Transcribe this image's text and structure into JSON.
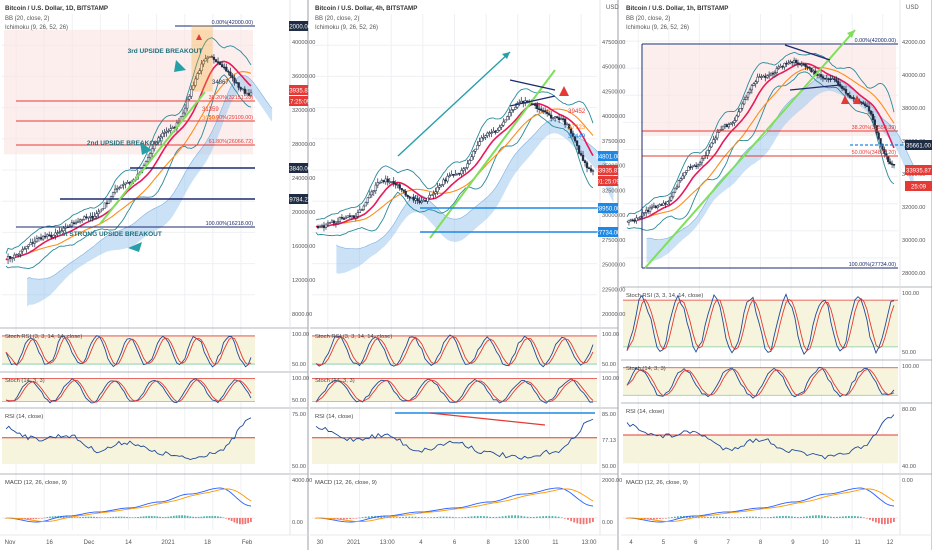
{
  "colors": {
    "bg": "#ffffff",
    "grid": "#eef0f3",
    "sep": "#9aa0a8",
    "price": "#1e2c44",
    "bb_mid": "#e8195a",
    "bb_band": "#2b8a9a",
    "ichi_line": "#ff8c1a",
    "cloud": "#9ec9ee",
    "red_level": "#e53935",
    "navy_level": "#1e2a6e",
    "blue_level": "#1e88e5",
    "green_trend": "#7ee05a",
    "teal_arrow": "#26a0a8",
    "stoch_k": "#1e4b9a",
    "stoch_d": "#e53935",
    "stoch_band": "#f7f4dd",
    "macd_line": "#2962ff",
    "macd_signal": "#ff9800",
    "hist_up": "#26a69a",
    "hist_down": "#ef5350",
    "top_zone": "#fbe3e3",
    "orange_box": "#f5a623",
    "tag_dark": "#1e2c44",
    "tag_red": "#e53935",
    "tag_blue": "#1e88e5",
    "tag_orange": "#ff8c1a"
  },
  "panels": [
    {
      "id": "1d",
      "title": "Bitcoin / U.S. Dollar, 1D, BITSTAMP",
      "indicators": [
        "BB (20, close, 2)",
        "Ichimoku (9, 26, 52, 26)"
      ],
      "axis_labels": [
        "40000.00",
        "36000.00",
        "32000.00",
        "28000.00",
        "24000.00",
        "20000.00",
        "16000.00",
        "12000.00",
        "8000.00"
      ],
      "price_tags": [
        "42000.00",
        "33935.87",
        "17:25:09",
        "23840.00",
        "19784.22"
      ],
      "levels": [
        {
          "label": "0.00%(42000.00)"
        },
        {
          "label": "38.20%(32151.28)"
        },
        {
          "label": "50.00%(29109.00)"
        },
        {
          "label": "61.80%(26066.72)"
        },
        {
          "label": "100.00%(16218.00)"
        }
      ],
      "annotations": [
        "3rd UPSIDE BREAKOUT",
        "2nd UPSIDE BREAKOUT",
        "1st STRONG UPSIDE BREAKOUT"
      ],
      "value_labels": [
        "34867",
        "31359",
        "30103"
      ],
      "sub": [
        {
          "name": "Stoch RSI (3, 3, 14, 14, close)",
          "ticks": [
            "100.00",
            "50.00"
          ]
        },
        {
          "name": "Stoch (14, 3, 3)",
          "ticks": [
            "100.00",
            "50.00"
          ]
        },
        {
          "name": "RSI (14, close)",
          "ticks": [
            "75.00",
            "50.00"
          ]
        },
        {
          "name": "MACD (12, 26, close, 9)",
          "ticks": [
            "4000.00",
            "0.00"
          ]
        }
      ],
      "x_labels": [
        "Nov",
        "16",
        "Dec",
        "14",
        "2021",
        "18",
        "Feb"
      ]
    },
    {
      "id": "4h",
      "title": "Bitcoin / U.S. Dollar, 4h, BITSTAMP",
      "indicators": [
        "BB (20, close, 2)",
        "Ichimoku (9, 26, 52, 26)"
      ],
      "currency": "USD",
      "axis_labels": [
        "47500.00",
        "45000.00",
        "42500.00",
        "40000.00",
        "37500.00",
        "35000.00",
        "32500.00",
        "30000.00",
        "27500.00",
        "25000.00",
        "22500.00",
        "20000.00"
      ],
      "price_tags": [
        "34801.00",
        "33935.87",
        "01:25:09",
        "28950.00",
        "27734.00"
      ],
      "value_labels": [
        "39452",
        "37723",
        "37449"
      ],
      "sub": [
        {
          "name": "Stoch RSI (3, 3, 14, 14, close)",
          "ticks": [
            "100.00",
            "50.00"
          ]
        },
        {
          "name": "Stoch (14, 3, 3)",
          "ticks": [
            "100.00"
          ]
        },
        {
          "name": "RSI (14, close)",
          "ticks": [
            "85.00",
            "77.13",
            "50.00"
          ]
        },
        {
          "name": "MACD (12, 26, close, 9)",
          "ticks": [
            "2000.00",
            "0.00"
          ]
        }
      ],
      "x_labels": [
        "30",
        "2021",
        "13:00",
        "4",
        "6",
        "8",
        "13:00",
        "11",
        "13:00"
      ]
    },
    {
      "id": "1h",
      "title": "Bitcoin / U.S. Dollar, 1h, BITSTAMP",
      "indicators": [
        "BB (20, close, 2)",
        "Ichimoku (9, 26, 52, 26)"
      ],
      "currency": "USD",
      "axis_labels": [
        "42000.00",
        "40000.00",
        "38000.00",
        "36000.00",
        "34000.00",
        "32000.00",
        "30000.00",
        "28000.00"
      ],
      "price_tags": [
        "35661.00",
        "33935.87",
        "25:09"
      ],
      "levels": [
        {
          "label": "0.00%(42000.00)"
        },
        {
          "label": "38.20%(36550.39)"
        },
        {
          "label": "50.00%(34867.20)"
        },
        {
          "label": "100.00%(27734.00)"
        }
      ],
      "sub": [
        {
          "name": "Stoch RSI (3, 3, 14, 14, close)",
          "ticks": [
            "100.00",
            "50.00"
          ]
        },
        {
          "name": "Stoch (14, 3, 3)",
          "ticks": [
            "100.00"
          ]
        },
        {
          "name": "RSI (14, close)",
          "ticks": [
            "80.00",
            "40.00"
          ]
        },
        {
          "name": "MACD (12, 26, close, 9)",
          "ticks": [
            "0.00"
          ]
        }
      ],
      "x_labels": [
        "4",
        "5",
        "6",
        "7",
        "8",
        "9",
        "10",
        "11",
        "12"
      ]
    }
  ],
  "chart_data": [
    {
      "type": "line",
      "title": "Bitcoin / U.S. Dollar, 1D, BITSTAMP",
      "x": [
        "Nov",
        "16",
        "Dec",
        "14",
        "2021",
        "18",
        "Feb"
      ],
      "series": [
        {
          "name": "",
          "values": [
            13500,
            16200,
            18500,
            23000,
            29500,
            38500,
            34000
          ]
        }
      ],
      "ylim": [
        5000,
        44000
      ]
    },
    {
      "type": "line",
      "title": "Bitcoin / U.S. Dollar, 4h, BITSTAMP",
      "x": [
        "30",
        "2021",
        "13:00",
        "4",
        "6",
        "8",
        "13:00",
        "11",
        "13:00"
      ],
      "series": [
        {
          "name": "",
          "values": [
            28500,
            29500,
            33000,
            31000,
            33500,
            37500,
            40500,
            39000,
            34000
          ]
        }
      ],
      "ylim": [
        19000,
        49000
      ]
    },
    {
      "type": "line",
      "title": "Bitcoin / U.S. Dollar, 1h, BITSTAMP",
      "x": [
        "4",
        "5",
        "6",
        "7",
        "8",
        "9",
        "10",
        "11",
        "12"
      ],
      "series": [
        {
          "name": "",
          "values": [
            30500,
            31500,
            34000,
            36500,
            39500,
            40500,
            39500,
            38000,
            34000
          ]
        }
      ],
      "ylim": [
        26500,
        43500
      ]
    }
  ]
}
